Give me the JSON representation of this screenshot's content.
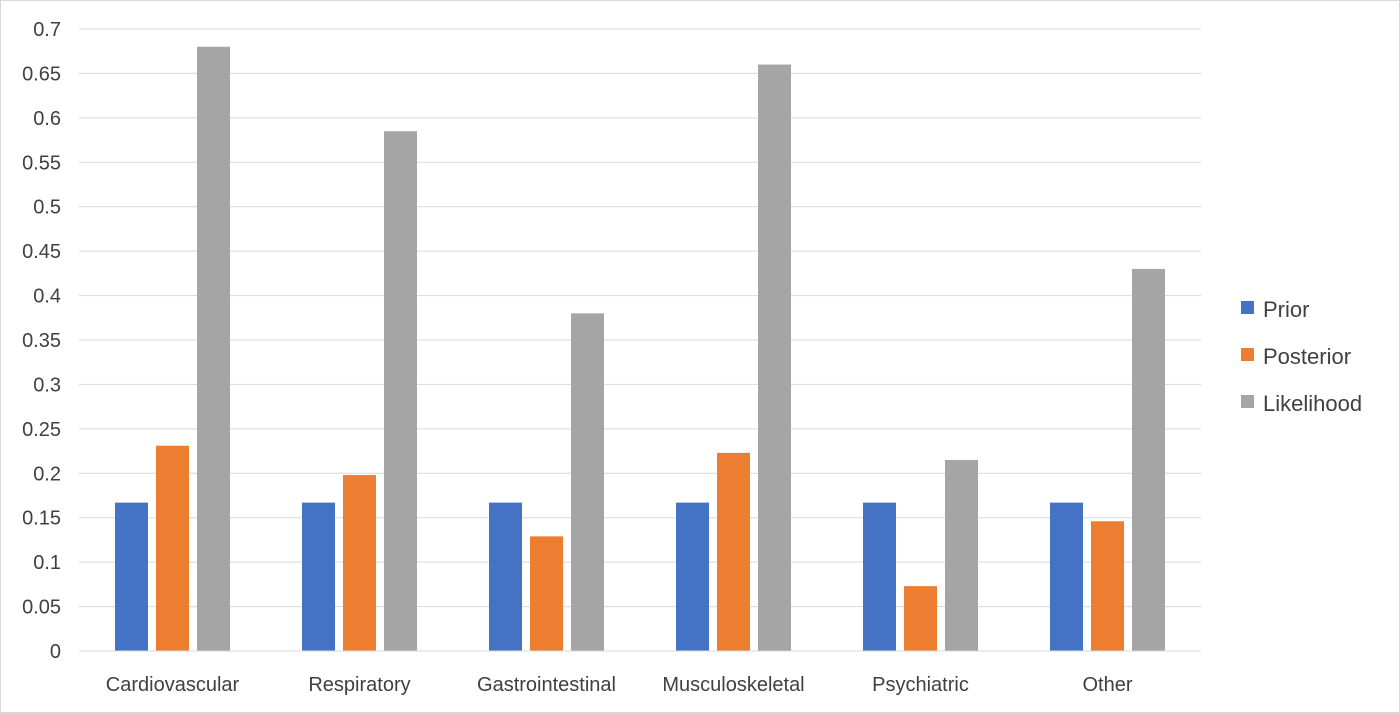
{
  "chart_data": {
    "type": "bar",
    "title": "",
    "xlabel": "",
    "ylabel": "",
    "categories": [
      "Cardiovascular",
      "Respiratory",
      "Gastrointestinal",
      "Musculoskeletal",
      "Psychiatric",
      "Other"
    ],
    "series": [
      {
        "name": "Prior",
        "color": "#4472c4",
        "values": [
          0.167,
          0.167,
          0.167,
          0.167,
          0.167,
          0.167
        ]
      },
      {
        "name": "Posterior",
        "color": "#ed7d31",
        "values": [
          0.231,
          0.198,
          0.129,
          0.223,
          0.073,
          0.146
        ]
      },
      {
        "name": "Likelihood",
        "color": "#a5a5a5",
        "values": [
          0.68,
          0.585,
          0.38,
          0.66,
          0.215,
          0.43
        ]
      }
    ],
    "ylim": [
      0,
      0.7
    ],
    "yticks": [
      "0",
      "0.05",
      "0.1",
      "0.15",
      "0.2",
      "0.25",
      "0.3",
      "0.35",
      "0.4",
      "0.45",
      "0.5",
      "0.55",
      "0.6",
      "0.65",
      "0.7"
    ],
    "grid": true,
    "legend_position": "right"
  }
}
